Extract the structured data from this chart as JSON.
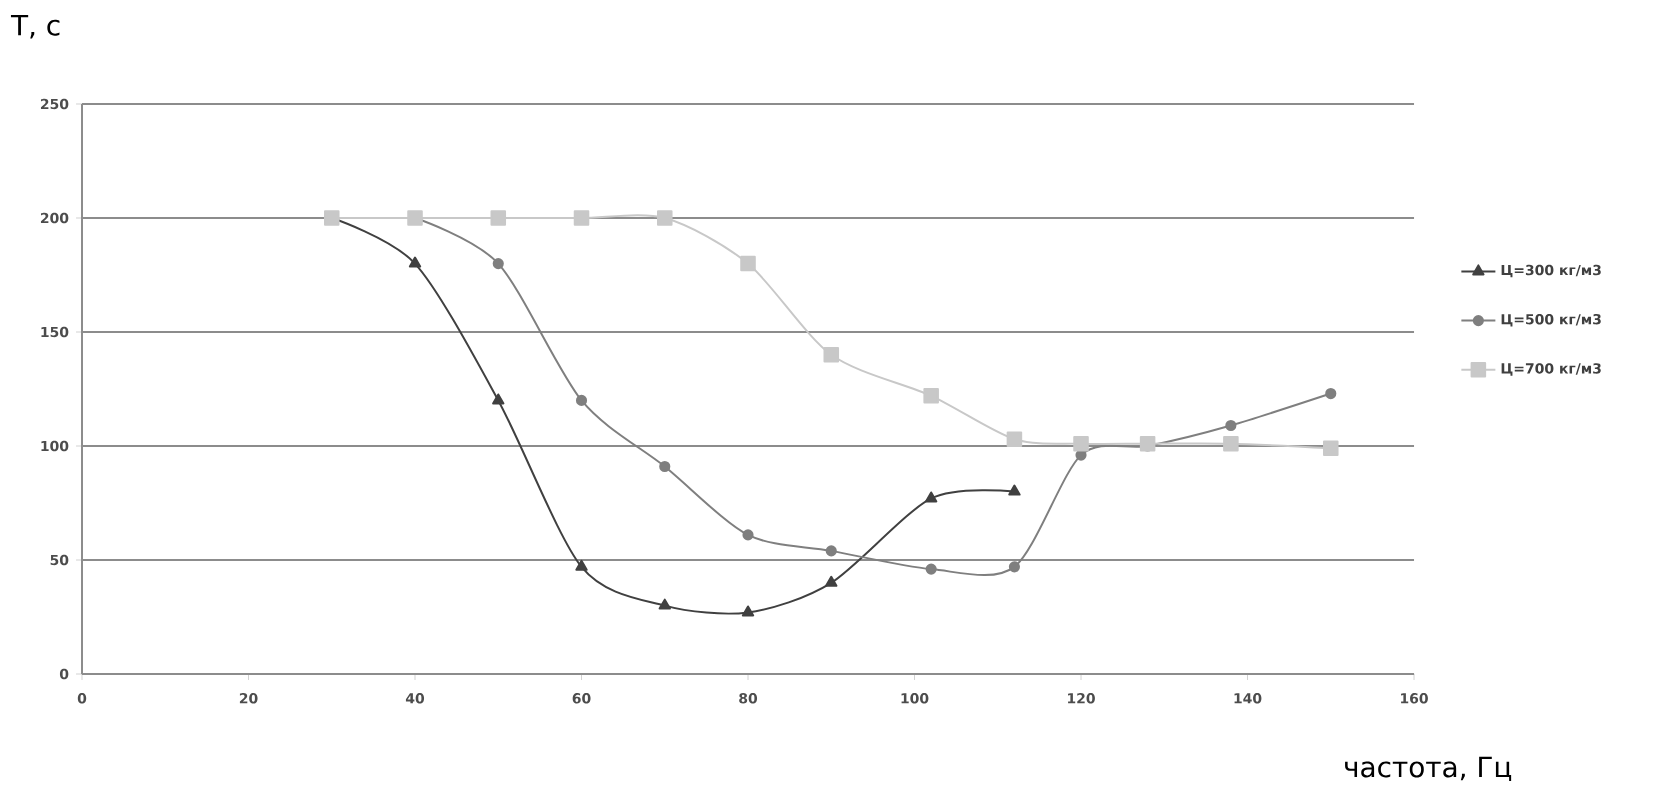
{
  "chart_data": {
    "type": "line",
    "xlabel": "частота, Гц",
    "ylabel": "T, с",
    "xlim": [
      0,
      160
    ],
    "xticks": [
      0,
      20,
      40,
      60,
      80,
      100,
      120,
      140,
      160
    ],
    "ylim": [
      0,
      250
    ],
    "yticks": [
      0,
      50,
      100,
      150,
      200,
      250
    ],
    "grid": "y",
    "legend": "right",
    "series": [
      {
        "name": "Ц=300 кг/м3",
        "color": "#404040",
        "marker": "triangle",
        "x": [
          30,
          40,
          50,
          60,
          70,
          80,
          90,
          102,
          112
        ],
        "values": [
          200,
          180,
          120,
          47,
          30,
          27,
          40,
          77,
          80
        ]
      },
      {
        "name": "Ц=500 кг/м3",
        "color": "#7f7f7f",
        "marker": "circle",
        "x": [
          40,
          50,
          60,
          70,
          80,
          90,
          102,
          112,
          120,
          128,
          138,
          150
        ],
        "values": [
          200,
          180,
          120,
          91,
          61,
          54,
          46,
          47,
          96,
          100,
          109,
          123
        ]
      },
      {
        "name": "Ц=700 кг/м3",
        "color": "#c8c8c8",
        "marker": "square",
        "x": [
          30,
          40,
          50,
          60,
          70,
          80,
          90,
          102,
          112,
          120,
          128,
          138,
          150
        ],
        "values": [
          200,
          200,
          200,
          200,
          200,
          180,
          140,
          122,
          103,
          101,
          101,
          101,
          99
        ]
      }
    ]
  }
}
